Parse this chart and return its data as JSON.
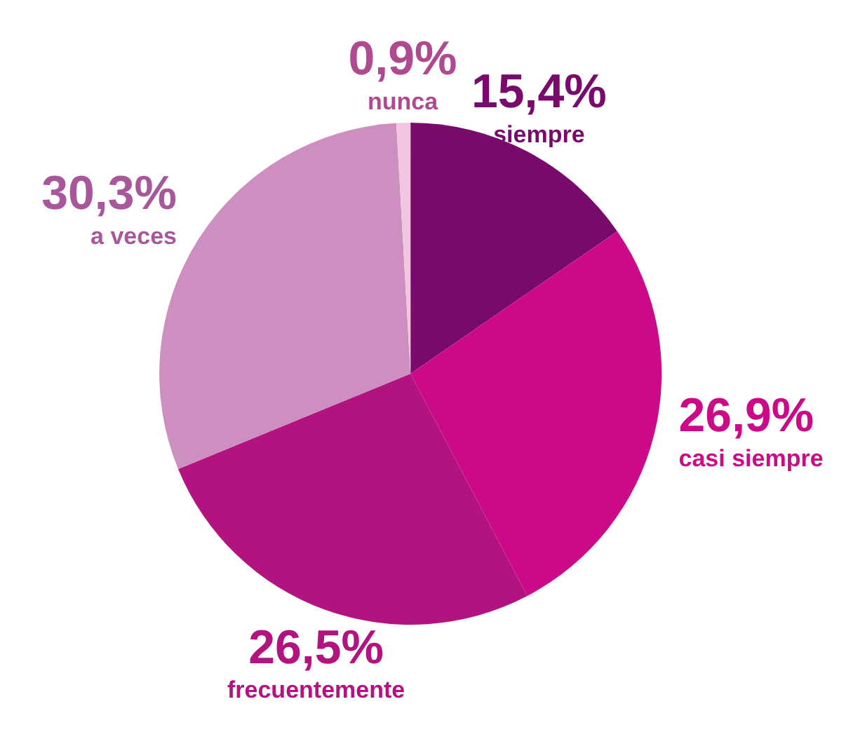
{
  "chart_data": {
    "type": "pie",
    "categories": [
      "siempre",
      "casi siempre",
      "frecuentemente",
      "a veces",
      "nunca"
    ],
    "values": [
      15.4,
      26.9,
      26.5,
      30.3,
      0.9
    ],
    "value_labels": [
      "15,4%",
      "26,9%",
      "26,5%",
      "30,3%",
      "0,9%"
    ],
    "colors": [
      "#780a6c",
      "#cc0a87",
      "#b2137f",
      "#cc8fbf",
      "#f2c6e0"
    ]
  }
}
